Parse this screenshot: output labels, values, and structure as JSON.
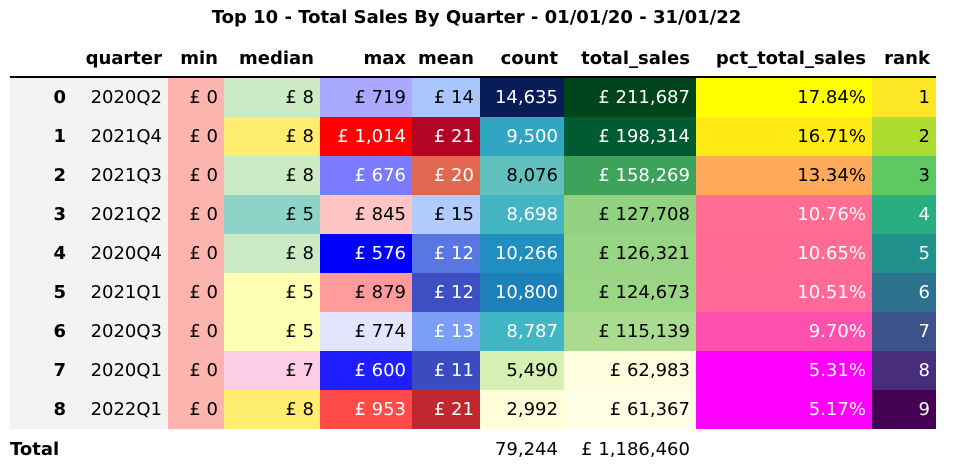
{
  "chart_data": {
    "type": "table",
    "title": "Top 10 - Total Sales By Quarter - 01/01/20 - 31/01/22",
    "columns": [
      "",
      "quarter",
      "min",
      "median",
      "max",
      "mean",
      "count",
      "total_sales",
      "pct_total_sales",
      "rank"
    ],
    "rows": [
      {
        "index": "0",
        "quarter": "2020Q2",
        "min": "£ 0",
        "median": "£ 8",
        "max": "£ 719",
        "mean": "£ 14",
        "count": "14,635",
        "total_sales": "£ 211,687",
        "pct_total_sales": "17.84%",
        "rank": "1"
      },
      {
        "index": "1",
        "quarter": "2021Q4",
        "min": "£ 0",
        "median": "£ 8",
        "max": "£ 1,014",
        "mean": "£ 21",
        "count": "9,500",
        "total_sales": "£ 198,314",
        "pct_total_sales": "16.71%",
        "rank": "2"
      },
      {
        "index": "2",
        "quarter": "2021Q3",
        "min": "£ 0",
        "median": "£ 8",
        "max": "£ 676",
        "mean": "£ 20",
        "count": "8,076",
        "total_sales": "£ 158,269",
        "pct_total_sales": "13.34%",
        "rank": "3"
      },
      {
        "index": "3",
        "quarter": "2021Q2",
        "min": "£ 0",
        "median": "£ 5",
        "max": "£ 845",
        "mean": "£ 15",
        "count": "8,698",
        "total_sales": "£ 127,708",
        "pct_total_sales": "10.76%",
        "rank": "4"
      },
      {
        "index": "4",
        "quarter": "2020Q4",
        "min": "£ 0",
        "median": "£ 8",
        "max": "£ 576",
        "mean": "£ 12",
        "count": "10,266",
        "total_sales": "£ 126,321",
        "pct_total_sales": "10.65%",
        "rank": "5"
      },
      {
        "index": "5",
        "quarter": "2021Q1",
        "min": "£ 0",
        "median": "£ 5",
        "max": "£ 879",
        "mean": "£ 12",
        "count": "10,800",
        "total_sales": "£ 124,673",
        "pct_total_sales": "10.51%",
        "rank": "6"
      },
      {
        "index": "6",
        "quarter": "2020Q3",
        "min": "£ 0",
        "median": "£ 5",
        "max": "£ 774",
        "mean": "£ 13",
        "count": "8,787",
        "total_sales": "£ 115,139",
        "pct_total_sales": "9.70%",
        "rank": "7"
      },
      {
        "index": "7",
        "quarter": "2020Q1",
        "min": "£ 0",
        "median": "£ 7",
        "max": "£ 600",
        "mean": "£ 11",
        "count": "5,490",
        "total_sales": "£ 62,983",
        "pct_total_sales": "5.31%",
        "rank": "8"
      },
      {
        "index": "8",
        "quarter": "2022Q1",
        "min": "£ 0",
        "median": "£ 8",
        "max": "£ 953",
        "mean": "£ 21",
        "count": "2,992",
        "total_sales": "£ 61,367",
        "pct_total_sales": "5.17%",
        "rank": "9"
      }
    ],
    "total": {
      "label": "Total",
      "count": "79,244",
      "total_sales": "£ 1,186,460"
    },
    "cell_colors": {
      "min": [
        [
          "#fbb4ae",
          "#000"
        ],
        [
          "#fbb4ae",
          "#000"
        ],
        [
          "#fbb4ae",
          "#000"
        ],
        [
          "#fbb4ae",
          "#000"
        ],
        [
          "#fbb4ae",
          "#000"
        ],
        [
          "#fbb4ae",
          "#000"
        ],
        [
          "#fbb4ae",
          "#000"
        ],
        [
          "#fbb4ae",
          "#000"
        ],
        [
          "#fbb4ae",
          "#000"
        ]
      ],
      "median": [
        [
          "#ccebc5",
          "#000"
        ],
        [
          "#ffed6f",
          "#000"
        ],
        [
          "#ccebc5",
          "#000"
        ],
        [
          "#8dd3c7",
          "#000"
        ],
        [
          "#ccebc5",
          "#000"
        ],
        [
          "#ffffb3",
          "#000"
        ],
        [
          "#ffffb3",
          "#000"
        ],
        [
          "#fccde5",
          "#000"
        ],
        [
          "#ffed6f",
          "#000"
        ]
      ],
      "max": [
        [
          "#a9a9ff",
          "#000"
        ],
        [
          "#ff0000",
          "#fff"
        ],
        [
          "#7b7bff",
          "#fff"
        ],
        [
          "#ffc4c4",
          "#000"
        ],
        [
          "#0000ff",
          "#fff"
        ],
        [
          "#ff9b9b",
          "#000"
        ],
        [
          "#e4e4ff",
          "#000"
        ],
        [
          "#1e1eff",
          "#fff"
        ],
        [
          "#ff4a4a",
          "#fff"
        ]
      ],
      "mean": [
        [
          "#aac7fd",
          "#000"
        ],
        [
          "#b40426",
          "#fff"
        ],
        [
          "#e16751",
          "#fff"
        ],
        [
          "#b1cbfc",
          "#000"
        ],
        [
          "#5977e3",
          "#fff"
        ],
        [
          "#3d50c3",
          "#fff"
        ],
        [
          "#7b9ff9",
          "#fff"
        ],
        [
          "#3b4cc0",
          "#fff"
        ],
        [
          "#c0282f",
          "#fff"
        ]
      ],
      "count": [
        [
          "#081d58",
          "#fff"
        ],
        [
          "#31a6c2",
          "#fff"
        ],
        [
          "#62c1bf",
          "#000"
        ],
        [
          "#45b4c2",
          "#fff"
        ],
        [
          "#1f8fc0",
          "#fff"
        ],
        [
          "#1d80b9",
          "#fff"
        ],
        [
          "#41b6c4",
          "#fff"
        ],
        [
          "#d6efb3",
          "#000"
        ],
        [
          "#fffed8",
          "#000"
        ]
      ],
      "total_sales": [
        [
          "#00441b",
          "#fff"
        ],
        [
          "#005a32",
          "#fff"
        ],
        [
          "#3da35a",
          "#fff"
        ],
        [
          "#91d17f",
          "#000"
        ],
        [
          "#97d483",
          "#000"
        ],
        [
          "#9bd685",
          "#000"
        ],
        [
          "#a9dc8e",
          "#000"
        ],
        [
          "#fdfedb",
          "#000"
        ],
        [
          "#ffffe5",
          "#000"
        ]
      ],
      "pct_total_sales": [
        [
          "#ffff00",
          "#000"
        ],
        [
          "#ffea15",
          "#000"
        ],
        [
          "#ffa95a",
          "#000"
        ],
        [
          "#ff6d93",
          "#fff"
        ],
        [
          "#ff6b94",
          "#fff"
        ],
        [
          "#ff6897",
          "#fff"
        ],
        [
          "#ff4faf",
          "#fff"
        ],
        [
          "#ff00ff",
          "#fff"
        ],
        [
          "#ff00ff",
          "#fff"
        ]
      ],
      "rank": [
        [
          "#fde725",
          "#000"
        ],
        [
          "#addc30",
          "#000"
        ],
        [
          "#5ec962",
          "#000"
        ],
        [
          "#28ae80",
          "#fff"
        ],
        [
          "#21918c",
          "#fff"
        ],
        [
          "#2c728e",
          "#fff"
        ],
        [
          "#3b528b",
          "#fff"
        ],
        [
          "#472d7b",
          "#fff"
        ],
        [
          "#440154",
          "#fff"
        ]
      ]
    }
  }
}
